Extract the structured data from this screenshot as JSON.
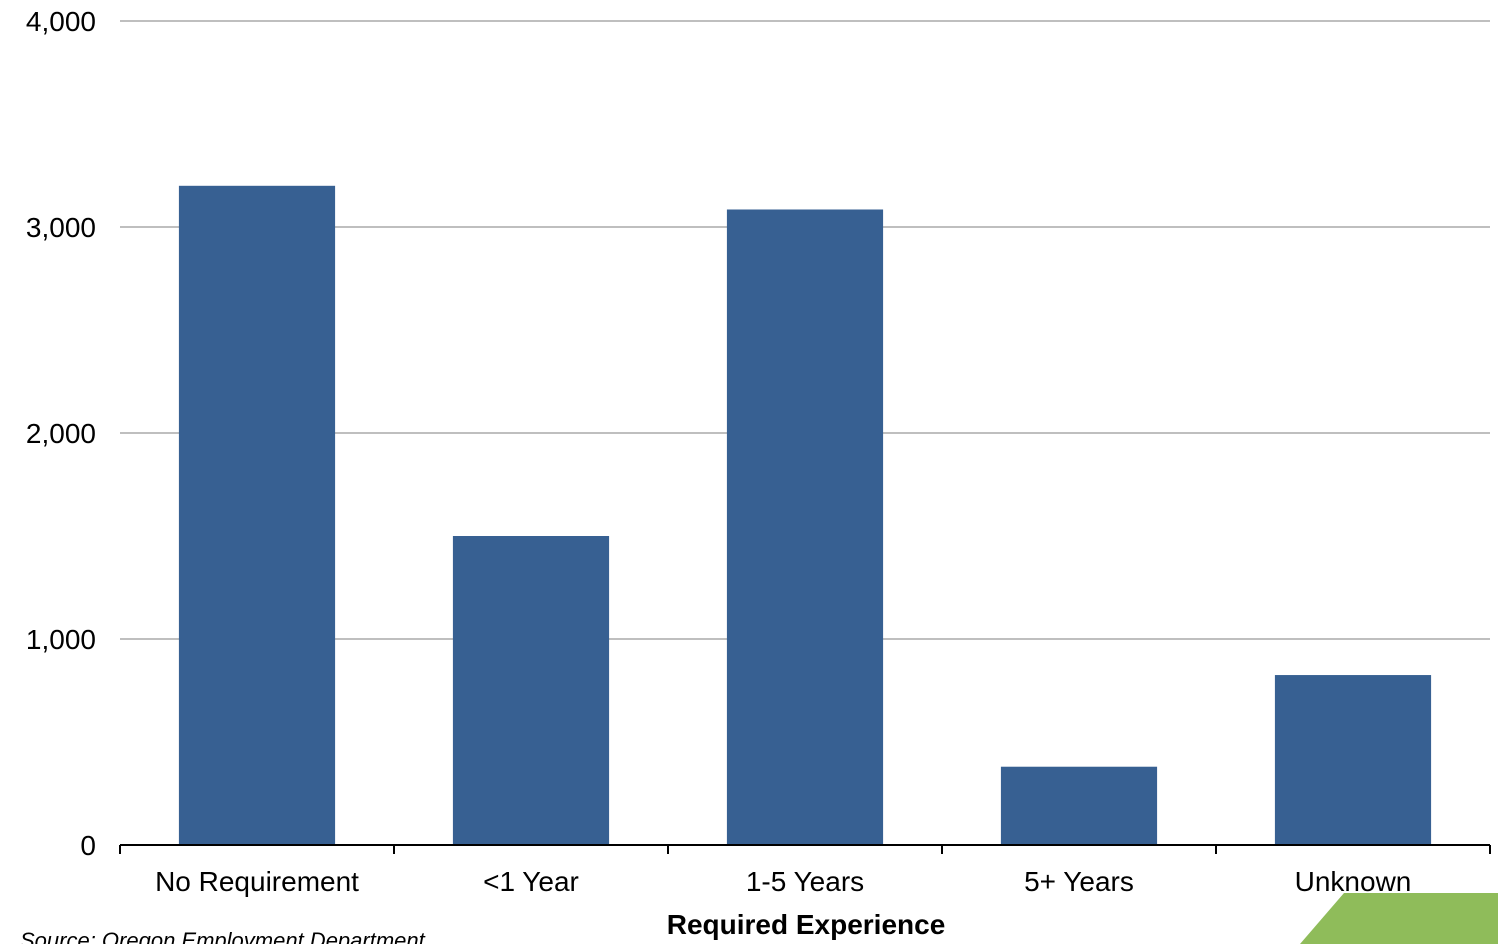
{
  "chart_data": {
    "type": "bar",
    "categories": [
      "No Requirement",
      "<1 Year",
      "1-5 Years",
      "5+ Years",
      "Unknown"
    ],
    "values": [
      3200,
      1500,
      3085,
      380,
      825
    ],
    "title": "",
    "xlabel": "Required Experience",
    "ylabel": "",
    "ylim": [
      0,
      4000
    ],
    "yticks": [
      0,
      1000,
      2000,
      3000,
      4000
    ],
    "ytick_labels": [
      "0",
      "1,000",
      "2,000",
      "3,000",
      "4,000"
    ],
    "grid": true,
    "legend": "none",
    "bar_color": "#376092",
    "grid_color": "#bfbfbf"
  },
  "source": "Source: Oregon Employment Department",
  "accent_color": "#8fbc5a"
}
